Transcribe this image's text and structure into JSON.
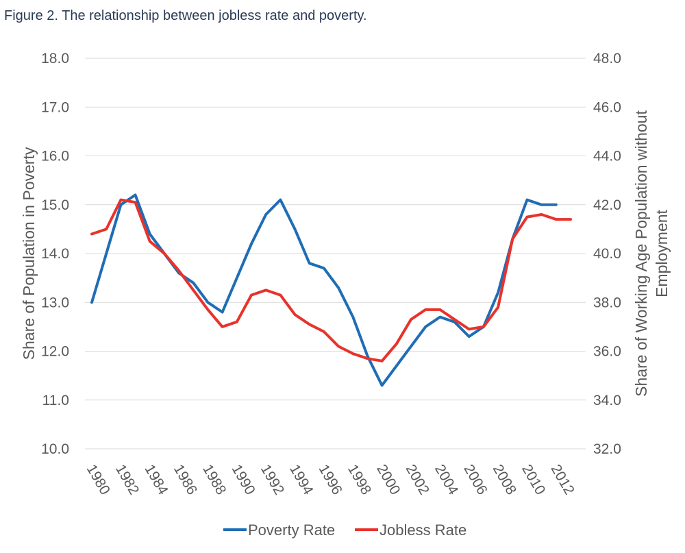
{
  "figure_title": "Figure 2. The relationship between jobless rate and poverty.",
  "chart_data": {
    "type": "line",
    "x": [
      1980,
      1981,
      1982,
      1983,
      1984,
      1985,
      1986,
      1987,
      1988,
      1989,
      1990,
      1991,
      1992,
      1993,
      1994,
      1995,
      1996,
      1997,
      1998,
      1999,
      2000,
      2001,
      2002,
      2003,
      2004,
      2005,
      2006,
      2007,
      2008,
      2009,
      2010,
      2011,
      2012,
      2013
    ],
    "x_tick_labels": [
      "1980",
      "1982",
      "1984",
      "1986",
      "1988",
      "1990",
      "1992",
      "1994",
      "1996",
      "1998",
      "2000",
      "2002",
      "2004",
      "2006",
      "2008",
      "2010",
      "2012"
    ],
    "ylabel_left": "Share of Population in Poverty",
    "ylabel_right_line1": "Share of Working Age Population without",
    "ylabel_right_line2": "Employment",
    "ylim_left": [
      10.0,
      18.0
    ],
    "ylim_right": [
      32.0,
      48.0
    ],
    "left_ticks": [
      "18.0",
      "17.0",
      "16.0",
      "15.0",
      "14.0",
      "13.0",
      "12.0",
      "11.0",
      "10.0"
    ],
    "right_ticks": [
      "48.0",
      "46.0",
      "44.0",
      "42.0",
      "40.0",
      "38.0",
      "36.0",
      "34.0",
      "32.0"
    ],
    "grid": true,
    "legend_position": "bottom",
    "series": [
      {
        "name": "Poverty Rate",
        "axis": "left",
        "color": "#1f6db5",
        "values": [
          13.0,
          14.0,
          15.0,
          15.2,
          14.4,
          14.0,
          13.6,
          13.4,
          13.0,
          12.8,
          13.5,
          14.2,
          14.8,
          15.1,
          14.5,
          13.8,
          13.7,
          13.3,
          12.7,
          11.9,
          11.3,
          11.7,
          12.1,
          12.5,
          12.7,
          12.6,
          12.3,
          12.5,
          13.2,
          14.3,
          15.1,
          15.0,
          15.0,
          null
        ]
      },
      {
        "name": "Jobless Rate",
        "axis": "right",
        "color": "#e8322b",
        "values": [
          40.8,
          41.0,
          42.2,
          42.1,
          40.5,
          40.0,
          39.3,
          38.5,
          37.7,
          37.0,
          37.2,
          38.3,
          38.5,
          38.3,
          37.5,
          37.1,
          36.8,
          36.2,
          35.9,
          35.7,
          35.6,
          36.3,
          37.3,
          37.7,
          37.7,
          37.3,
          36.9,
          37.0,
          37.8,
          40.6,
          41.5,
          41.6,
          41.4,
          41.4
        ]
      }
    ]
  }
}
